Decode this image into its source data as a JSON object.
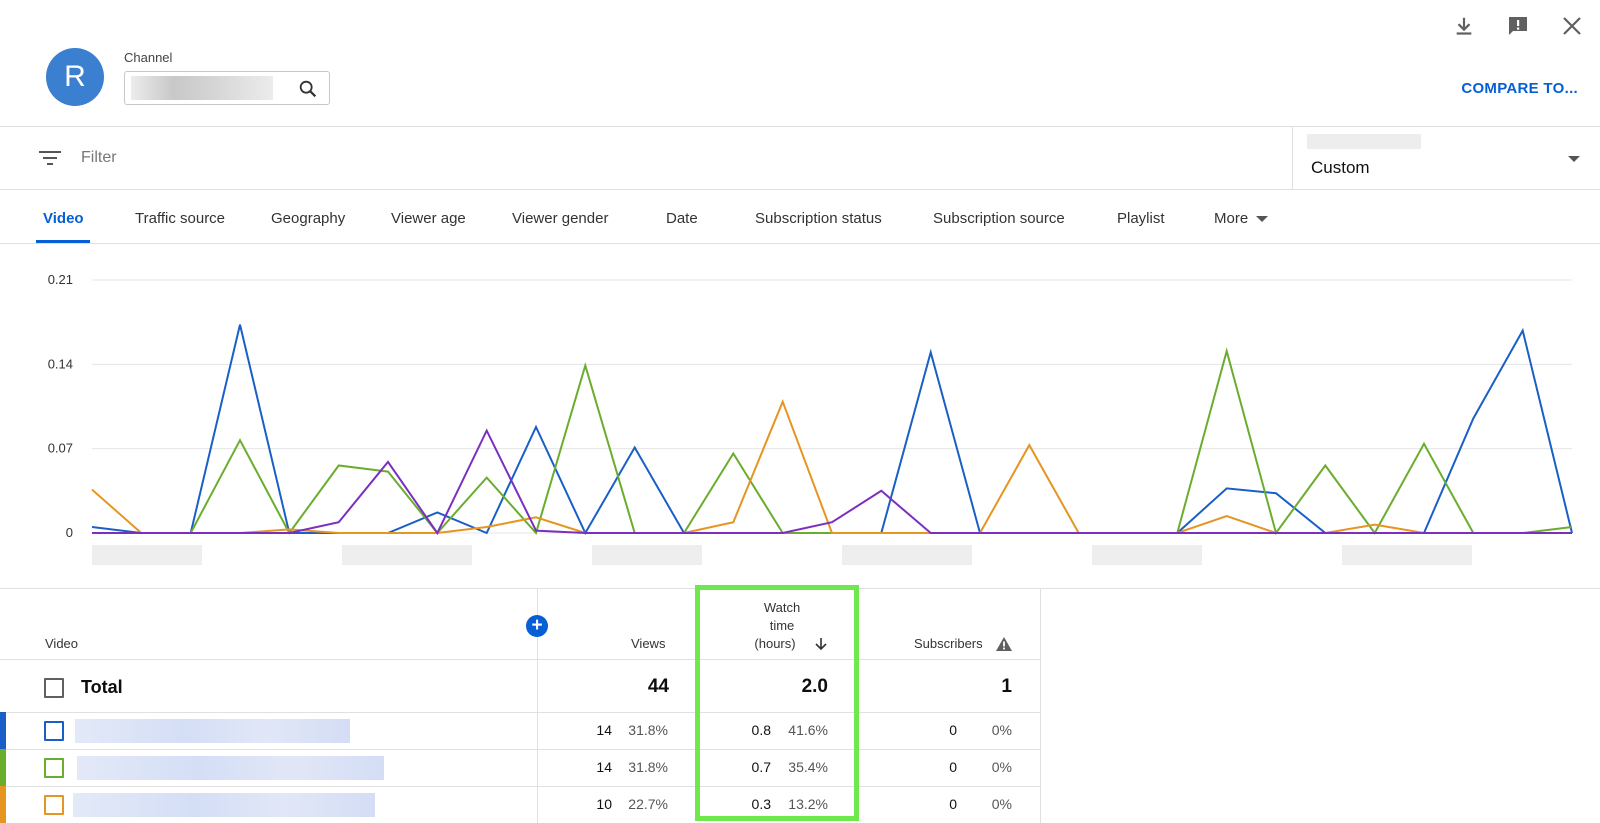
{
  "header": {
    "avatar_letter": "R",
    "channel_label": "Channel",
    "compare_label": "COMPARE TO...",
    "icons": [
      "download-icon",
      "feedback-icon",
      "close-icon"
    ]
  },
  "filter": {
    "placeholder": "Filter",
    "date_range": "Custom"
  },
  "tabs": [
    {
      "label": "Video",
      "active": true
    },
    {
      "label": "Traffic source"
    },
    {
      "label": "Geography"
    },
    {
      "label": "Viewer age"
    },
    {
      "label": "Viewer gender"
    },
    {
      "label": "Date"
    },
    {
      "label": "Subscription status"
    },
    {
      "label": "Subscription source"
    },
    {
      "label": "Playlist"
    },
    {
      "label": "More"
    }
  ],
  "chart_data": {
    "type": "line",
    "yticks": [
      "0.21",
      "0.14",
      "0.07",
      "0"
    ],
    "ylim": [
      0,
      0.21
    ],
    "grid": true,
    "x_count": 31,
    "series": [
      {
        "color": "#1a5fc7",
        "values": [
          0.005,
          0,
          0,
          0.173,
          0,
          0,
          0,
          0.017,
          0,
          0.088,
          0,
          0.071,
          0,
          0,
          0,
          0,
          0,
          0.15,
          0,
          0,
          0,
          0,
          0,
          0.037,
          0.033,
          0,
          0,
          0,
          0.095,
          0.168,
          0
        ]
      },
      {
        "color": "#6aad2e",
        "values": [
          0,
          0,
          0,
          0.077,
          0,
          0.056,
          0.051,
          0,
          0.046,
          0,
          0.139,
          0,
          0,
          0.066,
          0,
          0,
          0,
          0,
          0,
          0,
          0,
          0,
          0,
          0.151,
          0,
          0.056,
          0,
          0.074,
          0,
          0,
          0.005
        ]
      },
      {
        "color": "#e59520",
        "values": [
          0.036,
          0,
          0,
          0,
          0.003,
          0,
          0,
          0,
          0.005,
          0.013,
          0,
          0,
          0,
          0.009,
          0.109,
          0,
          0,
          0,
          0,
          0.073,
          0,
          0,
          0,
          0.014,
          0,
          0,
          0.007,
          0,
          0,
          0,
          0
        ]
      },
      {
        "color": "#7b2fbe",
        "values": [
          0,
          0,
          0,
          0,
          0,
          0.009,
          0.059,
          0,
          0.085,
          0.002,
          0,
          0,
          0,
          0,
          0,
          0.009,
          0.035,
          0,
          0,
          0,
          0,
          0,
          0,
          0,
          0,
          0,
          0,
          0,
          0,
          0,
          0
        ]
      }
    ]
  },
  "table": {
    "headers": {
      "video": "Video",
      "views": "Views",
      "watch_time_line1": "Watch",
      "watch_time_line2": "time",
      "watch_time_line3": "(hours)",
      "subscribers": "Subscribers"
    },
    "total": {
      "label": "Total",
      "views": "44",
      "watch_time": "2.0",
      "subscribers": "1"
    },
    "rows": [
      {
        "color": "#1a5fc7",
        "views": "14",
        "views_pct": "31.8%",
        "watch": "0.8",
        "watch_pct": "41.6%",
        "subs": "0",
        "subs_pct": "0%"
      },
      {
        "color": "#6aad2e",
        "views": "14",
        "views_pct": "31.8%",
        "watch": "0.7",
        "watch_pct": "35.4%",
        "subs": "0",
        "subs_pct": "0%"
      },
      {
        "color": "#e59520",
        "views": "10",
        "views_pct": "22.7%",
        "watch": "0.3",
        "watch_pct": "13.2%",
        "subs": "0",
        "subs_pct": "0%"
      }
    ]
  },
  "colors": {
    "accent": "#065fd4",
    "highlight": "#6fe84d"
  }
}
